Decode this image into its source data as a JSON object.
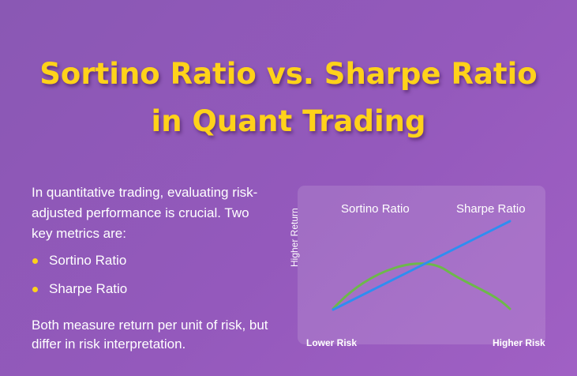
{
  "title": {
    "line1": "Sortino Ratio vs. Sharpe Ratio",
    "line2": "in Quant Trading"
  },
  "intro": "In quantitative trading, evaluating risk-adjusted performance is crucial. Two key metrics are:",
  "bullets": [
    {
      "label": "Sortino Ratio"
    },
    {
      "label": "Sharpe Ratio"
    }
  ],
  "outro": "Both measure return per unit of risk, but differ in risk interpretation.",
  "illustration": {
    "sortino_label": "Sortino Ratio",
    "sharpe_label": "Sharpe Ratio",
    "y_axis_label": "Higher Return",
    "x_left_label": "Lower Risk",
    "x_right_label": "Higher Risk"
  },
  "colors": {
    "background": "#9459bc",
    "title": "#ffd21a",
    "bullet": "#ffd21a",
    "sortino_curve": "#6db84a",
    "sharpe_line": "#2f8ef0"
  }
}
